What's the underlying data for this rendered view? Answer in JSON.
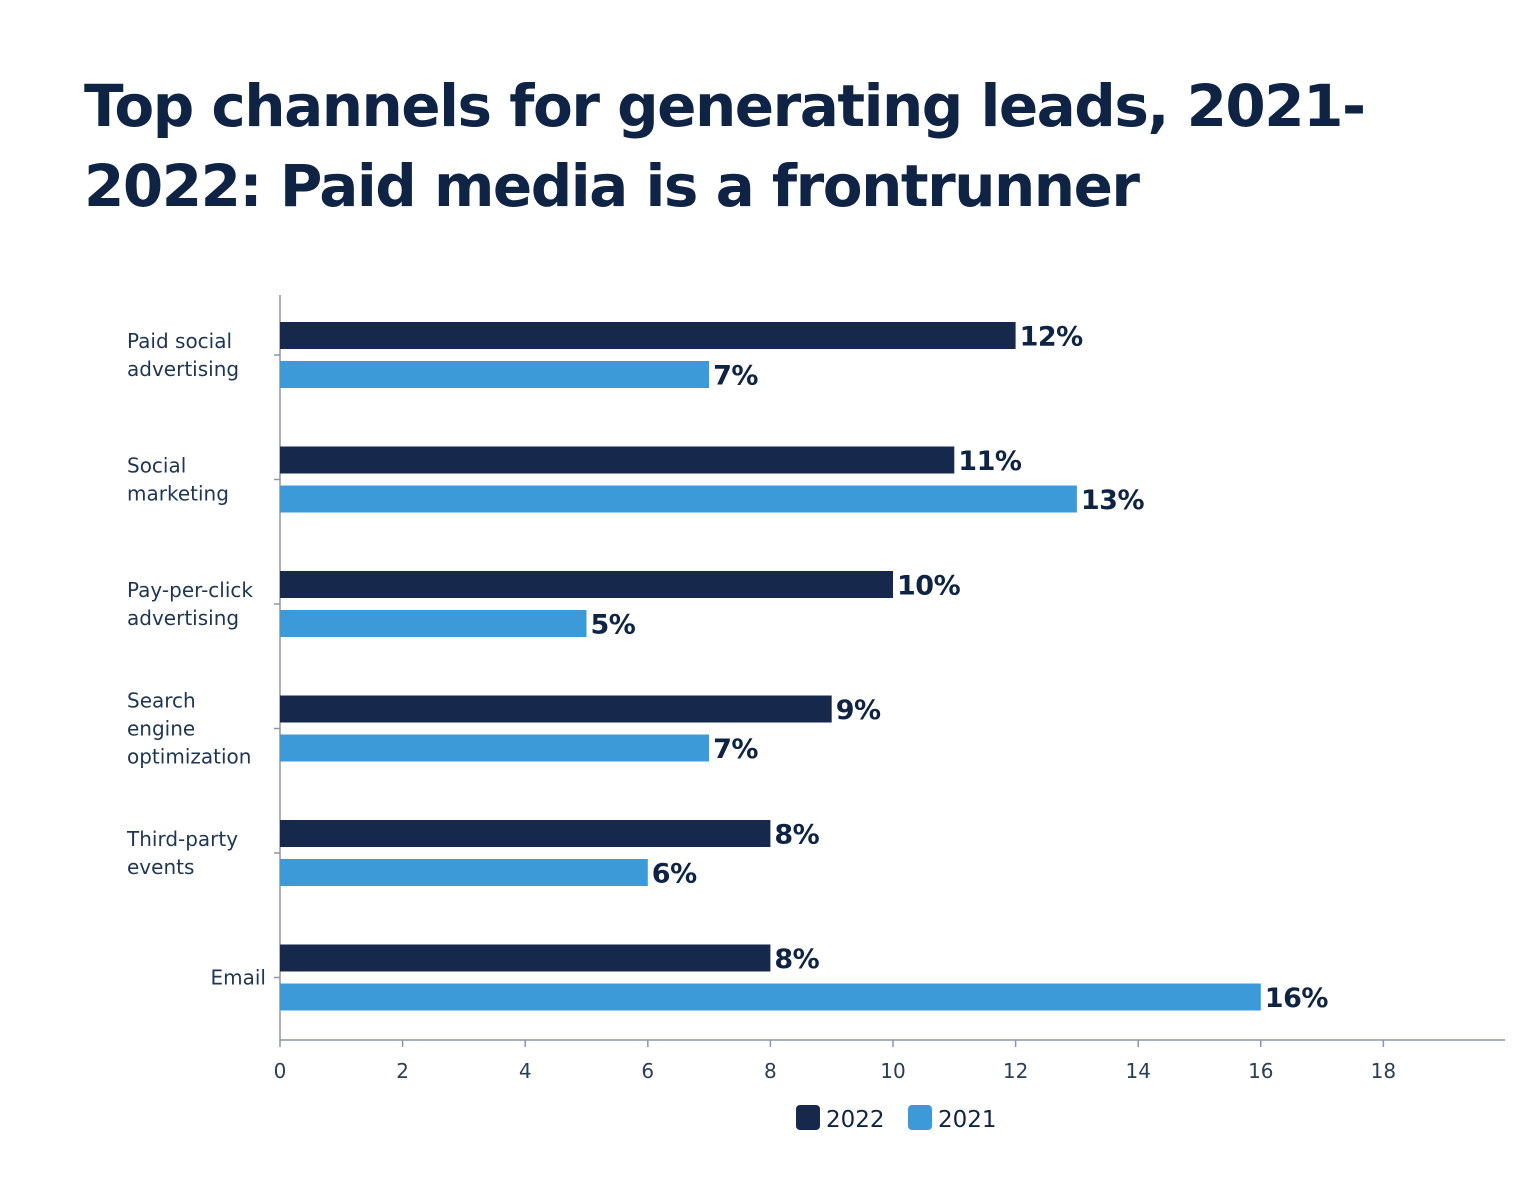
{
  "chart_data": {
    "type": "bar",
    "orientation": "horizontal",
    "title": "Top channels for generating leads, 2021-2022: Paid media is a frontrunner",
    "categories": [
      [
        "Paid social",
        "advertising"
      ],
      [
        "Social",
        "marketing"
      ],
      [
        "Pay-per-click",
        "advertising"
      ],
      [
        "Search",
        "engine",
        "optimization"
      ],
      [
        "Third-party",
        "events"
      ],
      [
        "Email"
      ]
    ],
    "series": [
      {
        "name": "2022",
        "color": "#17284d",
        "values": [
          12,
          11,
          10,
          9,
          8,
          8
        ],
        "labels": [
          "12%",
          "11%",
          "10%",
          "9%",
          "8%",
          "8%"
        ]
      },
      {
        "name": "2021",
        "color": "#3d9ad8",
        "values": [
          7,
          13,
          5,
          7,
          6,
          16
        ],
        "labels": [
          "7%",
          "13%",
          "5%",
          "7%",
          "6%",
          "16%"
        ]
      }
    ],
    "xlim": [
      0,
      20
    ],
    "xticks": [
      0,
      2,
      4,
      6,
      8,
      10,
      12,
      14,
      16,
      18
    ],
    "xlabel": "",
    "ylabel": "",
    "grid": false,
    "legend_position": "bottom-center"
  }
}
